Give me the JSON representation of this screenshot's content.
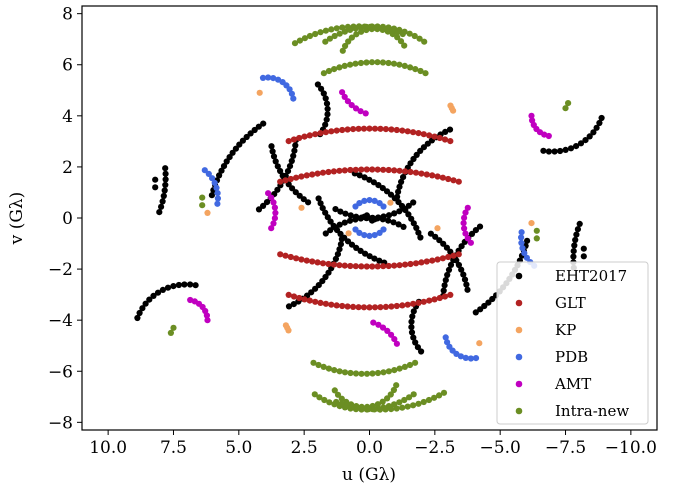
{
  "chart_data": {
    "type": "scatter",
    "xlabel": "u (Gλ)",
    "ylabel": "v (Gλ)",
    "xlim": [
      11.0,
      -11.0
    ],
    "ylim": [
      -8.3,
      8.3
    ],
    "xticks": [
      10.0,
      7.5,
      5.0,
      2.5,
      0.0,
      -2.5,
      -5.0,
      -7.5,
      -10.0
    ],
    "xtick_labels": [
      "10.0",
      "7.5",
      "5.0",
      "2.5",
      "0.0",
      "−2.5",
      "−5.0",
      "−7.5",
      "−10.0"
    ],
    "yticks": [
      8,
      6,
      4,
      2,
      0,
      -2,
      -4,
      -6,
      -8
    ],
    "ytick_labels": [
      "8",
      "6",
      "4",
      "2",
      "0",
      "−2",
      "−4",
      "−6",
      "−8"
    ],
    "grid": false,
    "legend_position": "lower-right",
    "series": [
      {
        "name": "EHT2017",
        "color": "#000000",
        "arcs": [
          {
            "cx": 3.2,
            "cy": 4.2,
            "r": 1.6,
            "a0": 140,
            "a1": 215
          },
          {
            "cx": -3.2,
            "cy": -4.2,
            "r": 1.6,
            "a0": -40,
            "a1": 35
          },
          {
            "cx": -4.6,
            "cy": 0.2,
            "r": 3.6,
            "a0": 10,
            "a1": 65
          },
          {
            "cx": 4.6,
            "cy": -0.2,
            "r": 3.6,
            "a0": 190,
            "a1": 245
          },
          {
            "cx": -7.0,
            "cy": 4.6,
            "r": 2.0,
            "a0": 200,
            "a1": 280
          },
          {
            "cx": 7.0,
            "cy": -4.6,
            "r": 2.0,
            "a0": 20,
            "a1": 100
          },
          {
            "cx": 0.0,
            "cy": 2.6,
            "r": 2.6,
            "a0": 230,
            "a1": 300
          },
          {
            "cx": 0.0,
            "cy": -2.6,
            "r": 2.6,
            "a0": 50,
            "a1": 120
          },
          {
            "cx": -1.2,
            "cy": 0.4,
            "r": 5.0,
            "a0": 195,
            "a1": 235
          },
          {
            "cx": 1.2,
            "cy": -0.4,
            "r": 5.0,
            "a0": 15,
            "a1": 55
          },
          {
            "cx": 6.8,
            "cy": 3.4,
            "r": 4.0,
            "a0": 185,
            "a1": 230
          },
          {
            "cx": -6.8,
            "cy": -3.4,
            "r": 4.0,
            "a0": 5,
            "a1": 50
          },
          {
            "cx": -2.0,
            "cy": 2.2,
            "r": 4.2,
            "a0": 290,
            "a1": 340
          },
          {
            "cx": 2.0,
            "cy": -2.2,
            "r": 4.2,
            "a0": 110,
            "a1": 160
          },
          {
            "cx": 0.4,
            "cy": 3.4,
            "r": 3.4,
            "a0": 305,
            "a1": 350
          },
          {
            "cx": -0.4,
            "cy": -3.4,
            "r": 3.4,
            "a0": 125,
            "a1": 170
          },
          {
            "cx": 11.8,
            "cy": 1.6,
            "r": 4.0,
            "a0": 175,
            "a1": 200
          },
          {
            "cx": -11.8,
            "cy": -1.6,
            "r": 4.0,
            "a0": -5,
            "a1": 20
          }
        ],
        "points": [
          [
            8.2,
            1.5
          ],
          [
            8.2,
            1.2
          ],
          [
            -8.2,
            -1.5
          ],
          [
            -8.2,
            -1.2
          ],
          [
            0.1,
            0.1
          ],
          [
            -0.1,
            -0.1
          ],
          [
            0.2,
            0.05
          ],
          [
            -0.2,
            -0.05
          ]
        ]
      },
      {
        "name": "GLT",
        "color": "#b22222",
        "arcs": [
          {
            "cx": 0.0,
            "cy": 5.2,
            "r": 3.9,
            "a0": 60,
            "a1": 120
          },
          {
            "cx": 0.0,
            "cy": -5.2,
            "r": 3.9,
            "a0": 240,
            "a1": 300
          },
          {
            "cx": 0.0,
            "cy": -6.5,
            "r": 10.0,
            "a0": 72,
            "a1": 108
          },
          {
            "cx": 0.0,
            "cy": 6.5,
            "r": 10.0,
            "a0": 252,
            "a1": 288
          },
          {
            "cx": 0.0,
            "cy": -10.5,
            "r": 12.4,
            "a0": 74,
            "a1": 106
          },
          {
            "cx": 0.0,
            "cy": 10.5,
            "r": 12.4,
            "a0": 254,
            "a1": 286
          }
        ],
        "points": []
      },
      {
        "name": "KP",
        "color": "#f4a460",
        "arcs": [],
        "points": [
          [
            -3.1,
            4.4
          ],
          [
            -3.2,
            4.2
          ],
          [
            -3.15,
            4.3
          ],
          [
            3.1,
            -4.4
          ],
          [
            3.2,
            -4.2
          ],
          [
            3.15,
            -4.3
          ],
          [
            -6.2,
            -0.2
          ],
          [
            6.2,
            0.2
          ],
          [
            -0.8,
            0.6
          ],
          [
            0.8,
            -0.6
          ],
          [
            2.6,
            0.4
          ],
          [
            -2.6,
            -0.4
          ],
          [
            4.2,
            4.9
          ],
          [
            -4.2,
            -4.9
          ]
        ]
      },
      {
        "name": "PDB",
        "color": "#4169e1",
        "arcs": [
          {
            "cx": 3.9,
            "cy": 4.5,
            "r": 1.0,
            "a0": 80,
            "a1": 170
          },
          {
            "cx": -3.9,
            "cy": -4.5,
            "r": 1.0,
            "a0": 260,
            "a1": 350
          },
          {
            "cx": 7.2,
            "cy": 0.8,
            "r": 1.4,
            "a0": 130,
            "a1": 190
          },
          {
            "cx": -7.2,
            "cy": -0.8,
            "r": 1.4,
            "a0": 310,
            "a1": 370
          },
          {
            "cx": 0.0,
            "cy": 0.0,
            "r": 0.7,
            "a0": 40,
            "a1": 140
          },
          {
            "cx": 0.0,
            "cy": 0.0,
            "r": 0.7,
            "a0": 220,
            "a1": 320
          }
        ],
        "points": []
      },
      {
        "name": "AMT",
        "color": "#c000c0",
        "arcs": [
          {
            "cx": -0.4,
            "cy": 5.6,
            "r": 1.6,
            "a0": 290,
            "a1": 335
          },
          {
            "cx": 0.4,
            "cy": -5.6,
            "r": 1.6,
            "a0": 110,
            "a1": 155
          },
          {
            "cx": 4.8,
            "cy": 0.2,
            "r": 1.2,
            "a0": 140,
            "a1": 210
          },
          {
            "cx": -4.8,
            "cy": -0.2,
            "r": 1.2,
            "a0": -40,
            "a1": 30
          },
          {
            "cx": -7.0,
            "cy": 4.0,
            "r": 0.8,
            "a0": 280,
            "a1": 360
          },
          {
            "cx": 7.0,
            "cy": -4.0,
            "r": 0.8,
            "a0": 100,
            "a1": 180
          }
        ],
        "points": []
      },
      {
        "name": "Intra-new",
        "color": "#6b8e23",
        "arcs": [
          {
            "cx": -0.2,
            "cy": 6.1,
            "r": 1.3,
            "a0": 20,
            "a1": 150
          },
          {
            "cx": 0.2,
            "cy": -6.1,
            "r": 1.3,
            "a0": 200,
            "a1": 330
          },
          {
            "cx": -0.2,
            "cy": 4.2,
            "r": 3.3,
            "a0": 55,
            "a1": 125
          },
          {
            "cx": 0.2,
            "cy": -4.2,
            "r": 3.3,
            "a0": 235,
            "a1": 305
          },
          {
            "cx": 0.4,
            "cy": 2.6,
            "r": 4.9,
            "a0": 60,
            "a1": 110
          },
          {
            "cx": -0.4,
            "cy": -2.6,
            "r": 4.9,
            "a0": 240,
            "a1": 290
          },
          {
            "cx": -0.2,
            "cy": 1.5,
            "r": 4.6,
            "a0": 65,
            "a1": 115
          },
          {
            "cx": 0.2,
            "cy": -1.5,
            "r": 4.6,
            "a0": 245,
            "a1": 295
          }
        ],
        "points": [
          [
            6.4,
            0.8
          ],
          [
            6.4,
            0.5
          ],
          [
            -6.4,
            -0.8
          ],
          [
            -6.4,
            -0.5
          ],
          [
            7.5,
            -4.3
          ],
          [
            7.6,
            -4.5
          ],
          [
            -7.5,
            4.3
          ],
          [
            -7.6,
            4.5
          ]
        ]
      }
    ]
  }
}
